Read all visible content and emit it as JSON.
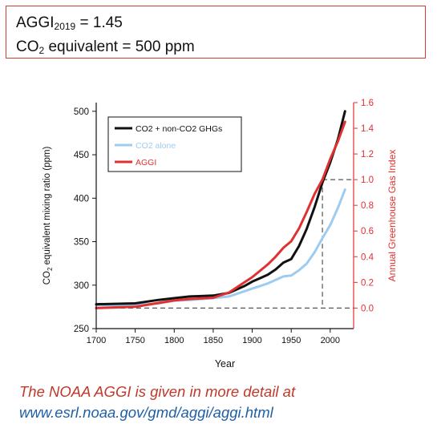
{
  "header": {
    "line1_prefix": "AGGI",
    "line1_sub": "2019",
    "line1_suffix": " = 1.45",
    "line2_prefix": "CO",
    "line2_sub": "2",
    "line2_suffix": " equivalent = 500 ppm"
  },
  "footer": {
    "line1": "The NOAA AGGI is given in more detail at",
    "line2": "www.esrl.noaa.gov/gmd/aggi/aggi.html",
    "line1_color": "#c0392b",
    "line2_color": "#1f5fa8"
  },
  "chart_data": {
    "type": "line",
    "xlabel": "Year",
    "ylabel_parts": [
      "CO",
      "2",
      " equivalent mixing ratio (ppm)"
    ],
    "y2label": "Annual Greenhouse Gas Index",
    "xlim": [
      1700,
      2030
    ],
    "ylim": [
      250,
      510
    ],
    "y2lim": [
      -0.16,
      1.6
    ],
    "xticks": [
      1700,
      1750,
      1800,
      1850,
      1900,
      1950,
      2000
    ],
    "yticks": [
      250,
      300,
      350,
      400,
      450,
      500
    ],
    "y2ticks": [
      "0.0",
      "0.2",
      "0.4",
      "0.6",
      "0.8",
      "1.0",
      "1.2",
      "1.4",
      "1.6"
    ],
    "grid": false,
    "legend_position": "top-left",
    "reference_lines": {
      "aggi_zero": 0.0,
      "aggi_one": 1.0,
      "year_1990": 1990
    },
    "series": [
      {
        "name": "CO2 + non-CO2 GHGs",
        "color": "#111111",
        "axis": "left",
        "x": [
          1700,
          1750,
          1780,
          1800,
          1820,
          1850,
          1870,
          1890,
          1900,
          1910,
          1920,
          1930,
          1940,
          1950,
          1960,
          1970,
          1980,
          1990,
          2000,
          2010,
          2019
        ],
        "y": [
          278,
          279,
          283,
          285,
          287,
          288,
          291,
          299,
          304,
          308,
          312,
          318,
          326,
          330,
          345,
          365,
          390,
          418,
          441,
          468,
          500
        ]
      },
      {
        "name": "CO2 alone",
        "color": "#9ecbf0",
        "axis": "left",
        "x": [
          1700,
          1750,
          1780,
          1800,
          1820,
          1850,
          1870,
          1890,
          1900,
          1910,
          1920,
          1930,
          1940,
          1950,
          1960,
          1970,
          1980,
          1990,
          2000,
          2010,
          2019
        ],
        "y": [
          277,
          277,
          279,
          282,
          283,
          285,
          287,
          293,
          296,
          299,
          302,
          306,
          310,
          311,
          317,
          325,
          338,
          354,
          369,
          389,
          410
        ]
      },
      {
        "name": "AGGI",
        "color": "#e03030",
        "axis": "right",
        "x": [
          1700,
          1750,
          1780,
          1800,
          1820,
          1850,
          1870,
          1890,
          1900,
          1910,
          1920,
          1930,
          1940,
          1950,
          1960,
          1970,
          1980,
          1990,
          2000,
          2010,
          2019
        ],
        "y": [
          0.0,
          0.01,
          0.04,
          0.06,
          0.07,
          0.08,
          0.12,
          0.2,
          0.24,
          0.29,
          0.34,
          0.4,
          0.47,
          0.52,
          0.62,
          0.75,
          0.89,
          1.0,
          1.16,
          1.3,
          1.45
        ]
      }
    ]
  }
}
